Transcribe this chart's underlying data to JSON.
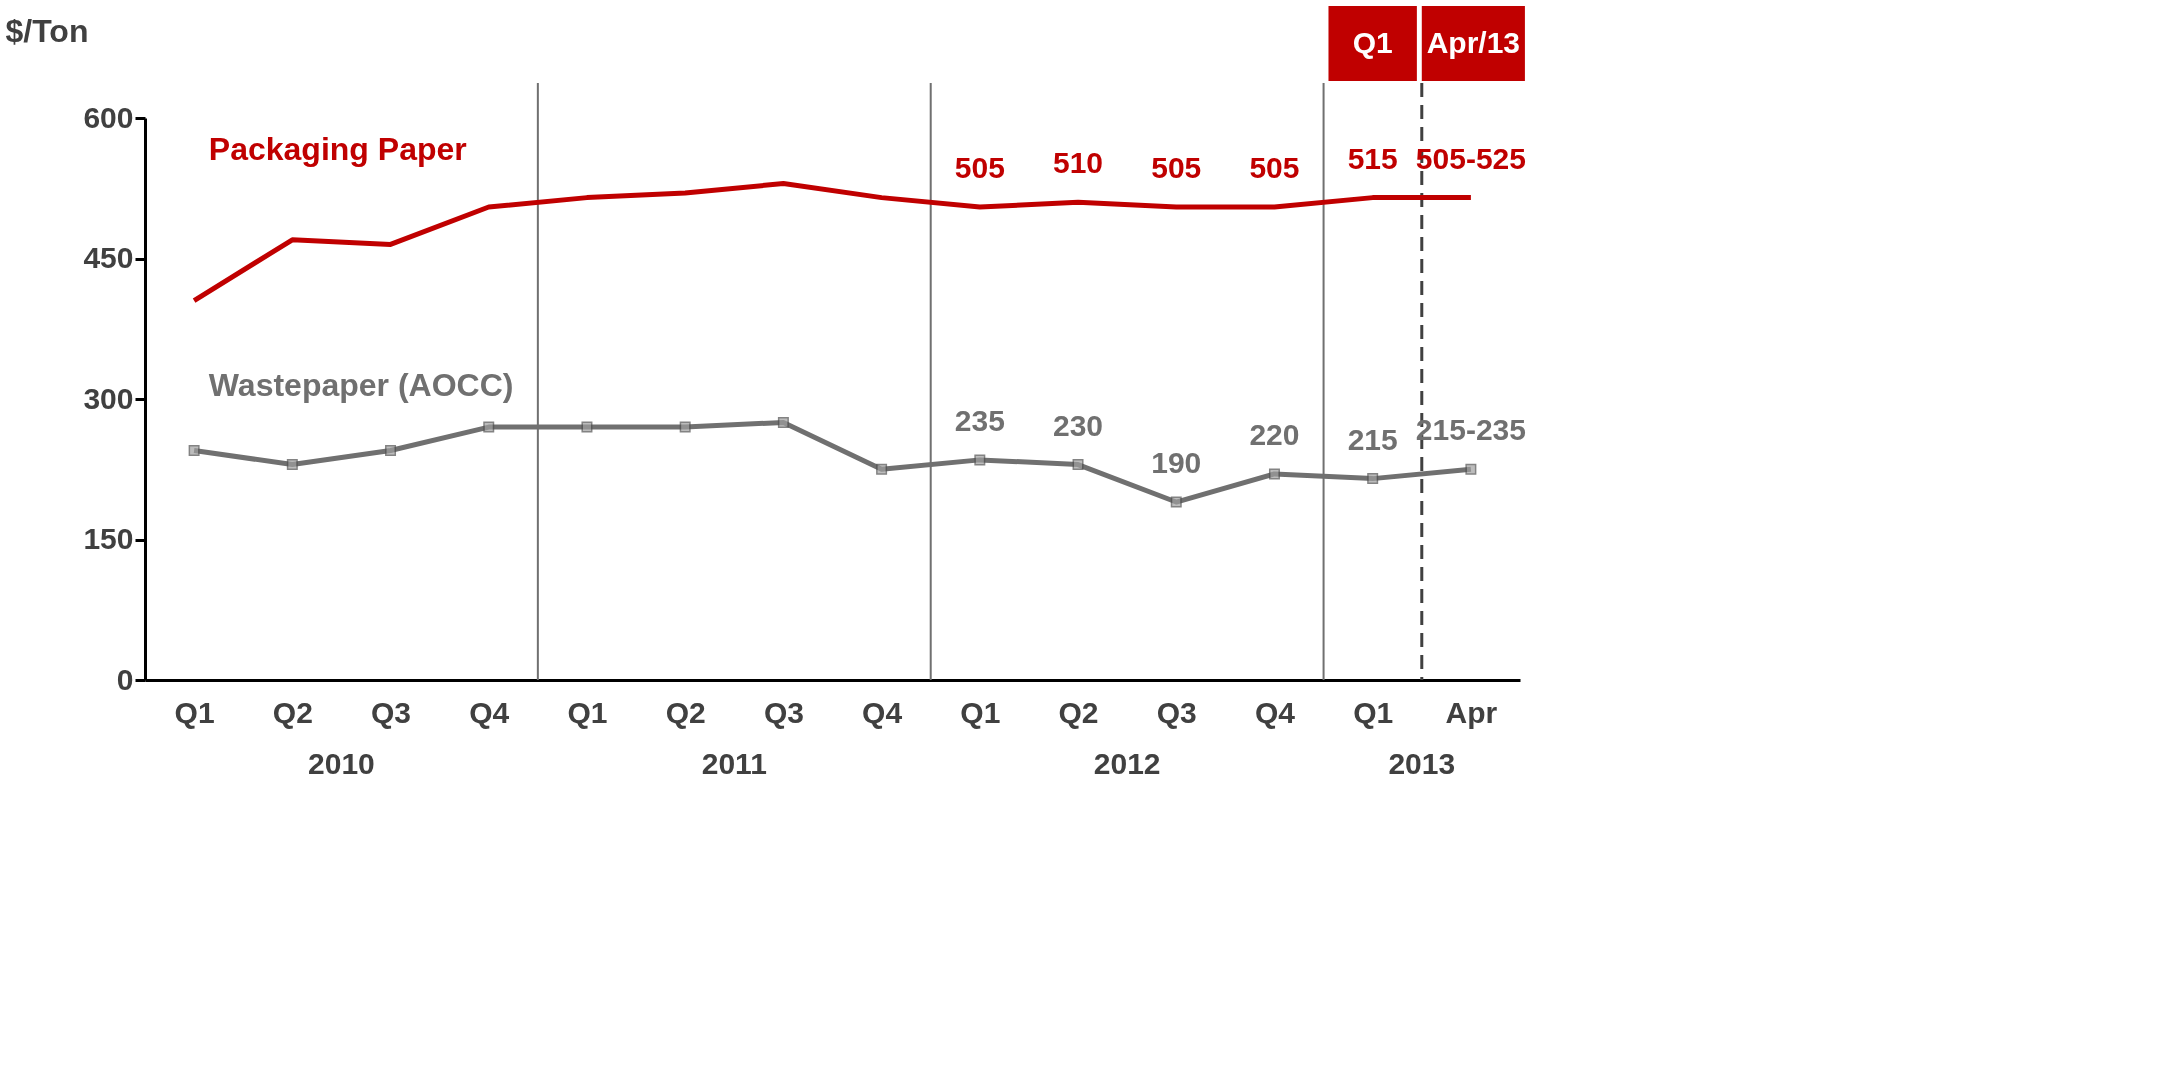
{
  "chart_data": {
    "type": "line",
    "ylabel": "$/Ton",
    "categories": [
      "Q1",
      "Q2",
      "Q3",
      "Q4",
      "Q1",
      "Q2",
      "Q3",
      "Q4",
      "Q1",
      "Q2",
      "Q3",
      "Q4",
      "Q1",
      "Apr"
    ],
    "series": [
      {
        "name": "Packaging Paper",
        "color": "#c00000",
        "values": [
          405,
          470,
          465,
          505,
          515,
          520,
          530,
          515,
          505,
          510,
          505,
          505,
          515,
          515
        ],
        "value_labels": [
          null,
          null,
          null,
          null,
          null,
          null,
          null,
          null,
          "505",
          "510",
          "505",
          "505",
          "515",
          "505-525"
        ]
      },
      {
        "name": "Wastepaper (AOCC)",
        "color": "#707070",
        "marker": "square",
        "values": [
          245,
          230,
          245,
          270,
          270,
          270,
          275,
          225,
          235,
          230,
          190,
          220,
          215,
          225
        ],
        "value_labels": [
          null,
          null,
          null,
          null,
          null,
          null,
          null,
          null,
          "235",
          "230",
          "190",
          "220",
          "215",
          "215-235"
        ]
      }
    ],
    "ylim": [
      0,
      600
    ],
    "yticks": [
      0,
      150,
      300,
      450,
      600
    ],
    "grid": false,
    "ref_lines": [
      {
        "axis": "x",
        "value": "Apr",
        "color": "#404040",
        "line_style": "dashed"
      }
    ],
    "annotations": [
      "2010",
      "2011",
      "2012",
      "2013",
      "Q1",
      "Apr/13"
    ]
  }
}
